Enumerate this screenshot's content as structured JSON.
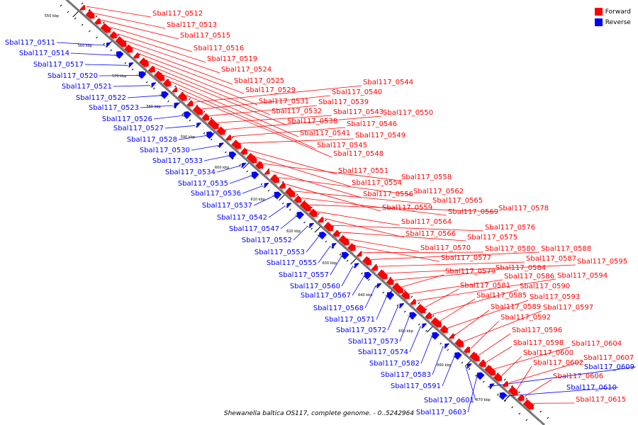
{
  "colors": {
    "forward": "#ff0000",
    "reverse": "#0000ff",
    "backbone": "#777777",
    "tick": "#000000"
  },
  "legend": {
    "forward_label": "Forward",
    "reverse_label": "Reverse"
  },
  "caption": "Shewanella baltica OS117, complete genome. - 0..5242964",
  "scale_labels": [
    "550 kbp",
    "560 kbp",
    "570 kbp",
    "580 kbp",
    "590 kbp",
    "600 kbp",
    "610 kbp",
    "620 kbp",
    "630 kbp",
    "640 kbp",
    "650 kbp",
    "660 kbp",
    "670 kbp"
  ],
  "forward_genes": [
    "Sbal117_0512",
    "Sbal117_0513",
    "Sbal117_0515",
    "Sbal117_0516",
    "Sbal117_0519",
    "Sbal117_0524",
    "Sbal117_0525",
    "Sbal117_0529",
    "Sbal117_0531",
    "Sbal117_0532",
    "Sbal117_0538",
    "Sbal117_0541",
    "Sbal117_0545",
    "Sbal117_0548",
    "Sbal117_0544",
    "Sbal117_0540",
    "Sbal117_0539",
    "Sbal117_0543",
    "Sbal117_0550",
    "Sbal117_0546",
    "Sbal117_0549",
    "Sbal117_0551",
    "Sbal117_0554",
    "Sbal117_0558",
    "Sbal117_0556",
    "Sbal117_0562",
    "Sbal117_0559",
    "Sbal117_0565",
    "Sbal117_0569",
    "Sbal117_0578",
    "Sbal117_0564",
    "Sbal117_0566",
    "Sbal117_0576",
    "Sbal117_0575",
    "Sbal117_0570",
    "Sbal117_0577",
    "Sbal117_0580",
    "Sbal117_0588",
    "Sbal117_0587",
    "Sbal117_0595",
    "Sbal117_0584",
    "Sbal117_0579",
    "Sbal117_0586",
    "Sbal117_0594",
    "Sbal117_0581",
    "Sbal117_0590",
    "Sbal117_0585",
    "Sbal117_0593",
    "Sbal117_0589",
    "Sbal117_0597",
    "Sbal117_0592",
    "Sbal117_0596",
    "Sbal117_0598",
    "Sbal117_0604",
    "Sbal117_0600",
    "Sbal117_0607",
    "Sbal117_0602",
    "Sbal117_0606",
    "Sbal117_0615"
  ],
  "reverse_genes": [
    "Sbal117_0511",
    "Sbal117_0514",
    "Sbal117_0517",
    "Sbal117_0520",
    "Sbal117_0521",
    "Sbal117_0522",
    "Sbal117_0523",
    "Sbal117_0526",
    "Sbal117_0527",
    "Sbal117_0528",
    "Sbal117_0530",
    "Sbal117_0533",
    "Sbal117_0534",
    "Sbal117_0535",
    "Sbal117_0536",
    "Sbal117_0537",
    "Sbal117_0542",
    "Sbal117_0547",
    "Sbal117_0552",
    "Sbal117_0553",
    "Sbal117_0555",
    "Sbal117_0557",
    "Sbal117_0560",
    "Sbal117_0567",
    "Sbal117_0568",
    "Sbal117_0571",
    "Sbal117_0572",
    "Sbal117_0573",
    "Sbal117_0574",
    "Sbal117_0582",
    "Sbal117_0583",
    "Sbal117_0591",
    "Sbal117_0601",
    "Sbal117_0603",
    "Sbal117_0609",
    "Sbal117_0610"
  ]
}
